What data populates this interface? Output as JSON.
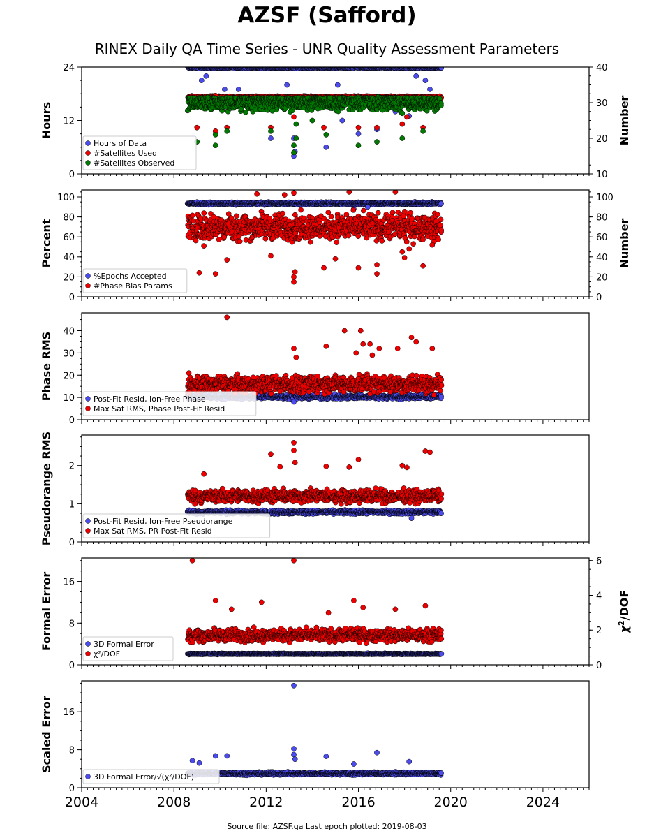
{
  "title": "AZSF (Safford)",
  "subtitle": "RINEX Daily QA Time Series - UNR Quality Assessment Parameters",
  "footer": "Source file: AZSF.qa Last epoch plotted: 2019-08-03",
  "colors": {
    "blue": "#4b4bf0",
    "red": "#ee0000",
    "green": "#007a00",
    "edge": "#000000"
  },
  "chart_data": [
    {
      "type": "scatter",
      "xlim": [
        2004,
        2026
      ],
      "x_ticks": [
        "2004",
        "2008",
        "2012",
        "2016",
        "2020",
        "2024"
      ],
      "ylabel": "Hours",
      "ylim": [
        0,
        24
      ],
      "y_ticks": [
        "0",
        "12",
        "24"
      ],
      "ylabel_right": "Number",
      "ylim_right": [
        10,
        40
      ],
      "y_ticks_right": [
        "10",
        "20",
        "30",
        "40"
      ],
      "legend": "bottom-left",
      "series": [
        {
          "name": "Hours of Data",
          "color": "blue",
          "axis": "left",
          "base": 23.9,
          "spread": 0.15,
          "outliers": [
            [
              2009.2,
              21
            ],
            [
              2009.4,
              22
            ],
            [
              2010.2,
              19
            ],
            [
              2010.8,
              19
            ],
            [
              2012.2,
              8
            ],
            [
              2012.9,
              20
            ],
            [
              2013.2,
              8
            ],
            [
              2013.2,
              4
            ],
            [
              2013.25,
              5
            ],
            [
              2014.6,
              6
            ],
            [
              2015.1,
              20
            ],
            [
              2015.3,
              12
            ],
            [
              2016.0,
              9
            ],
            [
              2016.8,
              10
            ],
            [
              2017.6,
              14
            ],
            [
              2018.2,
              13
            ],
            [
              2018.5,
              22
            ],
            [
              2018.9,
              21
            ],
            [
              2019.1,
              19
            ]
          ]
        },
        {
          "name": "#Satellites Used",
          "color": "red",
          "axis": "right",
          "base": 31.5,
          "spread": 0.3,
          "outliers": [
            [
              2009.0,
              23
            ],
            [
              2009.8,
              22
            ],
            [
              2009.8,
              32
            ],
            [
              2010.3,
              23
            ],
            [
              2012.2,
              23
            ],
            [
              2013.2,
              26
            ],
            [
              2014.5,
              23
            ],
            [
              2015.2,
              29
            ],
            [
              2016.0,
              23
            ],
            [
              2016.8,
              23
            ],
            [
              2017.9,
              24
            ],
            [
              2018.1,
              26
            ],
            [
              2018.8,
              23
            ]
          ]
        },
        {
          "name": "#Satellites Observed",
          "color": "green",
          "axis": "right",
          "base": 29.5,
          "spread": 1.4,
          "outliers": [
            [
              2009.0,
              19
            ],
            [
              2009.8,
              18
            ],
            [
              2009.8,
              21
            ],
            [
              2010.3,
              22
            ],
            [
              2012.2,
              22
            ],
            [
              2013.2,
              16
            ],
            [
              2013.2,
              18
            ],
            [
              2013.3,
              20
            ],
            [
              2013.3,
              24
            ],
            [
              2014.0,
              25
            ],
            [
              2014.6,
              21
            ],
            [
              2016.0,
              18
            ],
            [
              2016.8,
              19
            ],
            [
              2017.9,
              20
            ],
            [
              2017.9,
              27
            ],
            [
              2018.8,
              22
            ]
          ]
        }
      ]
    },
    {
      "type": "scatter",
      "xlim": [
        2004,
        2026
      ],
      "x_ticks": [
        "2004",
        "2008",
        "2012",
        "2016",
        "2020",
        "2024"
      ],
      "ylabel": "Percent",
      "ylim": [
        0,
        107
      ],
      "y_ticks": [
        "0",
        "20",
        "40",
        "60",
        "80",
        "100"
      ],
      "ylabel_right": "Number",
      "ylim_right": [
        0,
        107
      ],
      "y_ticks_right": [
        "0",
        "20",
        "40",
        "60",
        "80",
        "100"
      ],
      "legend": "bottom-left",
      "series": [
        {
          "name": "%Epochs Accepted",
          "color": "blue",
          "axis": "left",
          "base": 93.5,
          "spread": 1.0,
          "outliers": [
            [
              2015.8,
              88
            ],
            [
              2016.4,
              90
            ]
          ]
        },
        {
          "name": "#Phase Bias Params",
          "color": "red",
          "axis": "right",
          "base": 70,
          "spread": 11,
          "outliers": [
            [
              2009.1,
              24
            ],
            [
              2009.8,
              23
            ],
            [
              2010.3,
              37
            ],
            [
              2009.3,
              51
            ],
            [
              2012.2,
              41
            ],
            [
              2013.2,
              15
            ],
            [
              2013.2,
              20
            ],
            [
              2013.25,
              25
            ],
            [
              2013.2,
              104
            ],
            [
              2014.5,
              29
            ],
            [
              2015.0,
              38
            ],
            [
              2015.6,
              105
            ],
            [
              2016.0,
              29
            ],
            [
              2016.8,
              23
            ],
            [
              2016.8,
              32
            ],
            [
              2017.6,
              105
            ],
            [
              2017.9,
              45
            ],
            [
              2018.0,
              39
            ],
            [
              2018.2,
              48
            ],
            [
              2018.8,
              31
            ],
            [
              2019.2,
              52
            ],
            [
              2011.6,
              103
            ],
            [
              2012.8,
              102
            ]
          ]
        }
      ]
    },
    {
      "type": "scatter",
      "xlim": [
        2004,
        2026
      ],
      "x_ticks": [
        "2004",
        "2008",
        "2012",
        "2016",
        "2020",
        "2024"
      ],
      "ylabel": "Phase RMS",
      "ylim": [
        0,
        48
      ],
      "y_ticks": [
        "0",
        "10",
        "20",
        "30",
        "40"
      ],
      "legend": "bottom-left",
      "series": [
        {
          "name": "Post-Fit Resid, Ion-Free Phase",
          "color": "blue",
          "axis": "left",
          "base": 10.3,
          "spread": 0.8,
          "outliers": [
            [
              2013.2,
              8
            ]
          ]
        },
        {
          "name": "Max Sat RMS, Phase Post-Fit Resid",
          "color": "red",
          "axis": "left",
          "base": 16,
          "spread": 3.2,
          "outliers": [
            [
              2010.3,
              46
            ],
            [
              2013.2,
              32
            ],
            [
              2013.3,
              28
            ],
            [
              2014.6,
              33
            ],
            [
              2015.4,
              40
            ],
            [
              2016.1,
              40
            ],
            [
              2016.2,
              34
            ],
            [
              2016.5,
              34
            ],
            [
              2016.9,
              32
            ],
            [
              2017.7,
              32
            ],
            [
              2018.3,
              37
            ],
            [
              2018.5,
              35
            ],
            [
              2019.2,
              32
            ],
            [
              2015.9,
              30
            ],
            [
              2016.6,
              29
            ]
          ]
        }
      ]
    },
    {
      "type": "scatter",
      "xlim": [
        2004,
        2026
      ],
      "x_ticks": [
        "2004",
        "2008",
        "2012",
        "2016",
        "2020",
        "2024"
      ],
      "ylabel": "Pseudorange RMS",
      "ylim": [
        0,
        2.8
      ],
      "y_ticks": [
        "0",
        "1",
        "2"
      ],
      "legend": "bottom-left",
      "series": [
        {
          "name": "Post-Fit Resid, Ion-Free Pseudorange",
          "color": "blue",
          "axis": "left",
          "base": 0.78,
          "spread": 0.04,
          "outliers": [
            [
              2018.3,
              0.62
            ]
          ]
        },
        {
          "name": "Max Sat RMS, PR Post-Fit Resid",
          "color": "red",
          "axis": "left",
          "base": 1.2,
          "spread": 0.14,
          "outliers": [
            [
              2009.3,
              1.78
            ],
            [
              2012.2,
              2.3
            ],
            [
              2012.6,
              1.97
            ],
            [
              2013.2,
              2.6
            ],
            [
              2013.2,
              2.4
            ],
            [
              2013.25,
              2.08
            ],
            [
              2014.6,
              1.98
            ],
            [
              2015.6,
              1.96
            ],
            [
              2016.0,
              2.16
            ],
            [
              2017.9,
              2.0
            ],
            [
              2018.1,
              1.95
            ],
            [
              2018.9,
              2.38
            ],
            [
              2019.1,
              2.35
            ]
          ]
        }
      ]
    },
    {
      "type": "scatter",
      "xlim": [
        2004,
        2026
      ],
      "x_ticks": [
        "2004",
        "2008",
        "2012",
        "2016",
        "2020",
        "2024"
      ],
      "ylabel": "Formal Error",
      "ylim": [
        0,
        20.5
      ],
      "y_ticks": [
        "0",
        "8",
        "16"
      ],
      "ylabel_right": "χ²/DOF",
      "ylim_right": [
        0,
        6.15
      ],
      "y_ticks_right": [
        "0",
        "2",
        "4",
        "6"
      ],
      "legend": "bottom-left",
      "series": [
        {
          "name": "3D Formal Error",
          "color": "blue",
          "axis": "left",
          "base": 2.1,
          "spread": 0.08,
          "outliers": []
        },
        {
          "name": "χ²/DOF",
          "color": "red",
          "axis": "right",
          "base": 1.7,
          "spread": 0.3,
          "outliers": [
            [
              2008.8,
              6.0
            ],
            [
              2013.2,
              6.0
            ],
            [
              2009.8,
              3.7
            ],
            [
              2011.8,
              3.6
            ],
            [
              2015.8,
              3.7
            ],
            [
              2016.2,
              3.3
            ],
            [
              2018.9,
              3.4
            ],
            [
              2010.5,
              3.2
            ],
            [
              2014.7,
              3.0
            ],
            [
              2017.6,
              3.2
            ]
          ]
        }
      ]
    },
    {
      "type": "scatter",
      "xlim": [
        2004,
        2026
      ],
      "x_ticks": [
        "2004",
        "2008",
        "2012",
        "2016",
        "2020",
        "2024"
      ],
      "ylabel": "Scaled Error",
      "ylim": [
        0,
        22.5
      ],
      "y_ticks": [
        "0",
        "8",
        "16"
      ],
      "legend": "bottom-left",
      "series": [
        {
          "name": "3D Formal Error/√(χ²/DOF)",
          "color": "blue",
          "axis": "left",
          "base": 3.0,
          "spread": 0.25,
          "outliers": [
            [
              2008.8,
              5.7
            ],
            [
              2009.1,
              5.2
            ],
            [
              2009.8,
              6.7
            ],
            [
              2010.3,
              6.7
            ],
            [
              2013.2,
              21.5
            ],
            [
              2013.2,
              8.2
            ],
            [
              2013.2,
              7.0
            ],
            [
              2013.25,
              6.0
            ],
            [
              2014.6,
              6.6
            ],
            [
              2016.8,
              7.4
            ],
            [
              2018.2,
              5.5
            ],
            [
              2015.8,
              5.0
            ]
          ]
        }
      ]
    }
  ]
}
